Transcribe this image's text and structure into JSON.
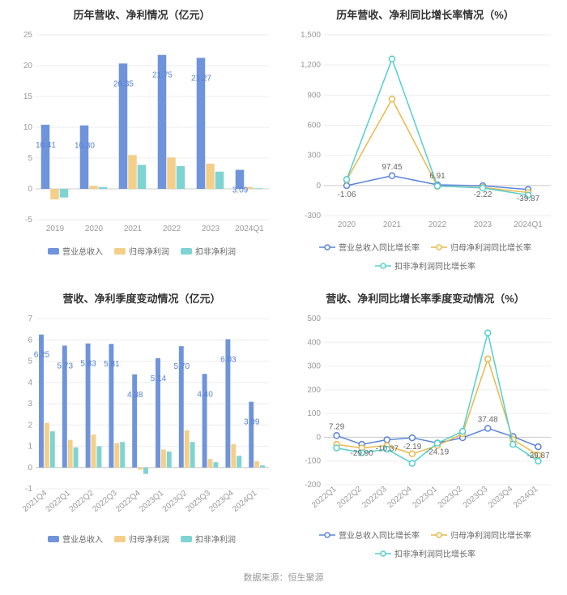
{
  "footer": "数据来源：恒生聚源",
  "colors": {
    "series_blue": "#6f94db",
    "series_yellow": "#f4cf8a",
    "series_teal": "#7fd3d3",
    "line_blue": "#5b84d8",
    "line_yellow": "#e9b949",
    "line_teal": "#55cfcf",
    "axis": "#cccccc",
    "grid": "#eeeeee",
    "tick_text": "#999999",
    "bar_label": "#577fd4",
    "title_text": "#333333"
  },
  "charts": {
    "annual_bar": {
      "type": "grouped-bar",
      "title": "历年营收、净利情况（亿元）",
      "categories": [
        "2019",
        "2020",
        "2021",
        "2022",
        "2023",
        "2024Q1"
      ],
      "ylim": [
        -5,
        25
      ],
      "yticks": [
        -5,
        0,
        5,
        10,
        15,
        20,
        25
      ],
      "series": [
        {
          "name": "营业总收入",
          "color": "#6f94db",
          "values": [
            10.41,
            10.3,
            20.35,
            21.75,
            21.27,
            3.09
          ]
        },
        {
          "name": "归母净利润",
          "color": "#f4cf8a",
          "values": [
            -1.7,
            0.5,
            5.5,
            5.1,
            4.1,
            0.3
          ]
        },
        {
          "name": "扣非净利润",
          "color": "#7fd3d3",
          "values": [
            -1.4,
            0.3,
            3.9,
            3.7,
            2.8,
            0.1
          ]
        }
      ],
      "main_labels": [
        10.41,
        10.3,
        20.35,
        21.75,
        21.27,
        3.09
      ],
      "label_color": "#577fd4",
      "label_fontsize": 10,
      "title_fontsize": 13,
      "bar_group_gap": 0.35
    },
    "annual_growth": {
      "type": "line",
      "title": "历年营收、净利同比增长率情况（%）",
      "categories": [
        "2020",
        "2021",
        "2022",
        "2023",
        "2024Q1"
      ],
      "ylim": [
        -300,
        1500
      ],
      "yticks": [
        -300,
        0,
        300,
        600,
        900,
        1200,
        1500
      ],
      "series": [
        {
          "name": "营业总收入同比增长率",
          "color": "#5b84d8",
          "marker": "circle",
          "values": [
            -1.06,
            97.45,
            6.91,
            -2.22,
            -39.87
          ]
        },
        {
          "name": "归母净利润同比增长率",
          "color": "#e9b949",
          "marker": "circle",
          "values": [
            55,
            860,
            -8,
            -20,
            -70
          ]
        },
        {
          "name": "扣非净利润同比增长率",
          "color": "#55cfcf",
          "marker": "circle",
          "values": [
            60,
            1260,
            -5,
            -25,
            -95
          ]
        }
      ],
      "main_labels": [
        -1.06,
        97.45,
        6.91,
        -2.22,
        -39.87
      ],
      "show_label_series": 0,
      "label_color": "#666666",
      "title_fontsize": 13,
      "marker_radius": 3.5,
      "line_width": 1.5
    },
    "quarter_bar": {
      "type": "grouped-bar",
      "title": "营收、净利季度变动情况（亿元）",
      "categories": [
        "2021Q4",
        "2022Q1",
        "2022Q2",
        "2022Q3",
        "2022Q4",
        "2023Q1",
        "2023Q2",
        "2023Q3",
        "2023Q4",
        "2024Q1"
      ],
      "x_rotate": -40,
      "ylim": [
        -1,
        7
      ],
      "yticks": [
        -1,
        0,
        1,
        2,
        3,
        4,
        5,
        6,
        7
      ],
      "series": [
        {
          "name": "营业总收入",
          "color": "#6f94db",
          "values": [
            6.25,
            5.73,
            5.83,
            5.81,
            4.38,
            5.14,
            5.7,
            4.4,
            6.03,
            3.09
          ]
        },
        {
          "name": "归母净利润",
          "color": "#f4cf8a",
          "values": [
            2.1,
            1.3,
            1.55,
            1.15,
            -0.1,
            0.85,
            1.75,
            0.4,
            1.1,
            0.3
          ]
        },
        {
          "name": "扣非净利润",
          "color": "#7fd3d3",
          "values": [
            1.7,
            0.95,
            1.0,
            1.2,
            -0.3,
            0.75,
            1.2,
            0.25,
            0.55,
            0.1
          ]
        }
      ],
      "main_labels": [
        6.25,
        5.73,
        5.83,
        5.81,
        4.38,
        5.14,
        5.7,
        4.4,
        6.03,
        3.09
      ],
      "label_color": "#577fd4",
      "title_fontsize": 13
    },
    "quarter_growth": {
      "type": "line",
      "title": "营收、净利同比增长率季度变动情况（%）",
      "categories": [
        "2022Q1",
        "2022Q2",
        "2022Q3",
        "2022Q4",
        "2023Q1",
        "2023Q2",
        "2023Q3",
        "2023Q4",
        "2024Q1"
      ],
      "x_rotate": -40,
      "ylim": [
        -200,
        500
      ],
      "yticks": [
        -200,
        -100,
        0,
        100,
        200,
        300,
        400,
        500
      ],
      "series": [
        {
          "name": "营业总收入同比增长率",
          "color": "#5b84d8",
          "marker": "circle",
          "values": [
            7.29,
            -29.9,
            -10.37,
            -2.19,
            -24.19,
            -2,
            37.48,
            3,
            -39.87
          ]
        },
        {
          "name": "归母净利润同比增长率",
          "color": "#e9b949",
          "marker": "circle",
          "values": [
            -30,
            -45,
            -35,
            -70,
            -35,
            15,
            330,
            -10,
            -75
          ]
        },
        {
          "name": "扣非净利润同比增长率",
          "color": "#55cfcf",
          "marker": "circle",
          "values": [
            -45,
            -65,
            -50,
            -110,
            -25,
            25,
            440,
            -30,
            -100
          ]
        }
      ],
      "main_labels": [
        7.29,
        -29.9,
        -10.37,
        -2.19,
        -24.19,
        null,
        37.48,
        null,
        -39.87
      ],
      "show_label_series": 0,
      "label_color": "#666666",
      "title_fontsize": 13,
      "marker_radius": 3.5,
      "line_width": 1.5
    }
  }
}
